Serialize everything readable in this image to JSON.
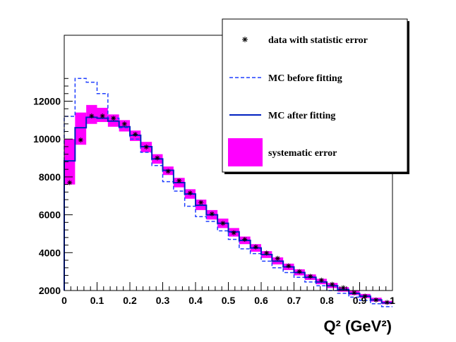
{
  "chart_data": {
    "type": "histogram",
    "xlabel": "Q² (GeV²)",
    "xlim": [
      0,
      1
    ],
    "ylim": [
      1100,
      14000
    ],
    "x_ticks": [
      "0",
      "0.1",
      "0.2",
      "0.3",
      "0.4",
      "0.5",
      "0.6",
      "0.7",
      "0.8",
      "0.9",
      "1"
    ],
    "y_ticks": [
      "2000",
      "4000",
      "6000",
      "8000",
      "10000",
      "12000"
    ],
    "bin_edges": [
      0,
      0.033,
      0.067,
      0.1,
      0.133,
      0.167,
      0.2,
      0.233,
      0.267,
      0.3,
      0.333,
      0.367,
      0.4,
      0.433,
      0.467,
      0.5,
      0.533,
      0.567,
      0.6,
      0.633,
      0.667,
      0.7,
      0.733,
      0.767,
      0.8,
      0.833,
      0.867,
      0.9,
      0.933,
      0.967,
      1.0
    ],
    "legend": {
      "placement": "top-right",
      "entries": {
        "data": "data with statistic error",
        "mc_before": "MC before fitting",
        "mc_after": "MC after fitting",
        "syst": "systematic error"
      }
    },
    "series": [
      {
        "key": "data",
        "name": "data with statistic error",
        "marker": "asterisk",
        "color": "#000000",
        "values": [
          7700,
          9950,
          11220,
          11220,
          11100,
          10800,
          10250,
          9580,
          9000,
          8300,
          7800,
          7150,
          6650,
          6050,
          5550,
          5050,
          4700,
          4300,
          3980,
          3700,
          3300,
          3000,
          2750,
          2550,
          2330,
          2150,
          1880,
          1700,
          1500,
          1370
        ]
      },
      {
        "key": "mc_before",
        "name": "MC before fitting",
        "style": "dashed",
        "color": "#1f3fff",
        "values": [
          11200,
          13200,
          13000,
          12400,
          11100,
          10600,
          10000,
          9300,
          8600,
          7750,
          7250,
          6450,
          5900,
          5650,
          5150,
          4700,
          4200,
          3950,
          3550,
          3200,
          2950,
          2700,
          2450,
          2250,
          2000,
          1850,
          1650,
          1480,
          1300,
          1150
        ]
      },
      {
        "key": "mc_after",
        "name": "MC after fitting",
        "style": "solid",
        "color": "#0020c0",
        "values": [
          8850,
          10600,
          11150,
          11100,
          10950,
          10650,
          10200,
          9600,
          8950,
          8350,
          7700,
          7100,
          6500,
          6000,
          5550,
          5100,
          4650,
          4250,
          3900,
          3550,
          3250,
          2950,
          2700,
          2450,
          2250,
          2050,
          1850,
          1700,
          1500,
          1350
        ]
      },
      {
        "key": "syst",
        "name": "systematic error",
        "style": "band",
        "color": "#ff00ff",
        "upper": [
          10000,
          11400,
          11800,
          11650,
          11300,
          11000,
          10450,
          9850,
          9200,
          8550,
          7950,
          7350,
          6800,
          6250,
          5800,
          5300,
          4850,
          4450,
          4080,
          3750,
          3420,
          3120,
          2850,
          2620,
          2400,
          2180,
          1980,
          1820,
          1620,
          1450
        ]
      }
    ],
    "syst_lower": [
      7600,
      9700,
      10800,
      10900,
      10650,
      10400,
      9900,
      9300,
      8700,
      8100,
      7450,
      6850,
      6250,
      5750,
      5300,
      4850,
      4450,
      4050,
      3720,
      3380,
      3080,
      2800,
      2560,
      2330,
      2130,
      1940,
      1760,
      1600,
      1420,
      1280
    ]
  }
}
